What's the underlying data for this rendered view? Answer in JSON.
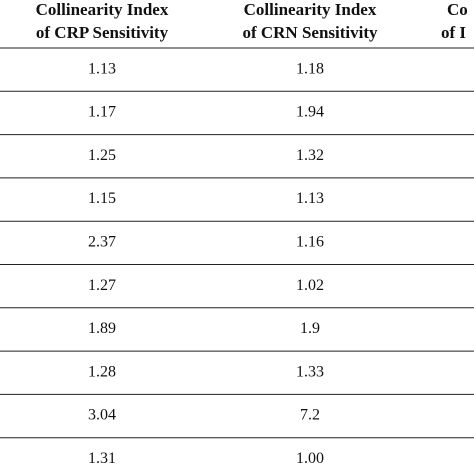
{
  "table": {
    "header": [
      [
        "Collinearity Index",
        "of CRP Sensitivity"
      ],
      [
        "Collinearity Index",
        "of CRN Sensitivity"
      ],
      [
        "Co",
        "of I"
      ]
    ],
    "rows": [
      [
        "1.13",
        "1.18"
      ],
      [
        "1.17",
        "1.94"
      ],
      [
        "1.25",
        "1.32"
      ],
      [
        "1.15",
        "1.13"
      ],
      [
        "2.37",
        "1.16"
      ],
      [
        "1.27",
        "1.02"
      ],
      [
        "1.89",
        "1.9"
      ],
      [
        "1.28",
        "1.33"
      ],
      [
        "3.04",
        "7.2"
      ],
      [
        "1.31",
        "1.00"
      ]
    ]
  }
}
